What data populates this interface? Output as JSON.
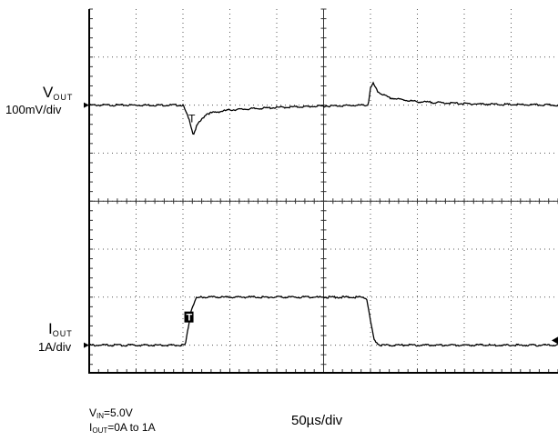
{
  "chart_data": {
    "type": "line",
    "time_division_label": "50µs/div",
    "channels": [
      {
        "name_main": "V",
        "name_sub": "OUT",
        "scale": "100mV/div",
        "ref_division": 2,
        "x_div": [
          0,
          2.0,
          2.15,
          2.22,
          2.3,
          2.5,
          3.0,
          4.0,
          5.0,
          5.95,
          6.0,
          6.06,
          6.15,
          6.4,
          7.0,
          8.0,
          9.0,
          10.0
        ],
        "y_div": [
          0,
          0,
          -0.35,
          -0.62,
          -0.42,
          -0.18,
          -0.1,
          -0.05,
          -0.02,
          0,
          0.35,
          0.45,
          0.28,
          0.15,
          0.07,
          0.03,
          0.01,
          0
        ]
      },
      {
        "name_main": "I",
        "name_sub": "OUT",
        "scale": "1A/div",
        "ref_division": 7,
        "x_div": [
          0,
          2.05,
          2.1,
          2.18,
          2.28,
          2.4,
          5.85,
          5.92,
          6.0,
          6.08,
          6.2,
          10.0
        ],
        "y_div": [
          0,
          0,
          0.3,
          0.75,
          0.98,
          1.0,
          1.0,
          0.98,
          0.5,
          0.1,
          0,
          0
        ]
      }
    ],
    "trigger_marker": "T",
    "conditions": [
      {
        "main": "V",
        "sub": "IN",
        "value": "=5.0V"
      },
      {
        "main": "I",
        "sub": "OUT",
        "value": "=0A to 1A"
      }
    ],
    "grid": true
  }
}
